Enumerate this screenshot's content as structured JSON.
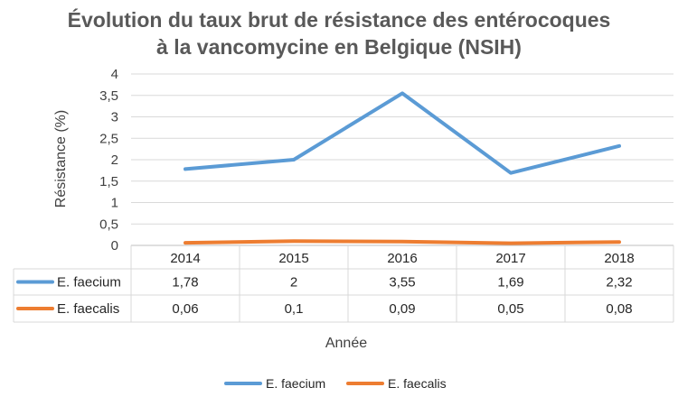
{
  "chart_data": {
    "type": "line",
    "title_line1": "Évolution du taux brut de résistance des entérocoques",
    "title_line2": "à la vancomycine en Belgique (NSIH)",
    "ylabel": "Résistance (%)",
    "xlabel": "Année",
    "categories": [
      "2014",
      "2015",
      "2016",
      "2017",
      "2018"
    ],
    "yticks": [
      "0",
      "0,5",
      "1",
      "1,5",
      "2",
      "2,5",
      "3",
      "3,5",
      "4"
    ],
    "ylim": [
      0,
      4
    ],
    "grid": true,
    "legend_placement": "bottom",
    "data_table": true,
    "series": [
      {
        "name": "E. faecium",
        "values": [
          1.78,
          2,
          3.55,
          1.69,
          2.32
        ],
        "labels": [
          "1,78",
          "2",
          "3,55",
          "1,69",
          "2,32"
        ],
        "color": "#5B9BD5"
      },
      {
        "name": "E. faecalis",
        "values": [
          0.06,
          0.1,
          0.09,
          0.05,
          0.08
        ],
        "labels": [
          "0,06",
          "0,1",
          "0,09",
          "0,05",
          "0,08"
        ],
        "color": "#ED7D31"
      }
    ]
  }
}
